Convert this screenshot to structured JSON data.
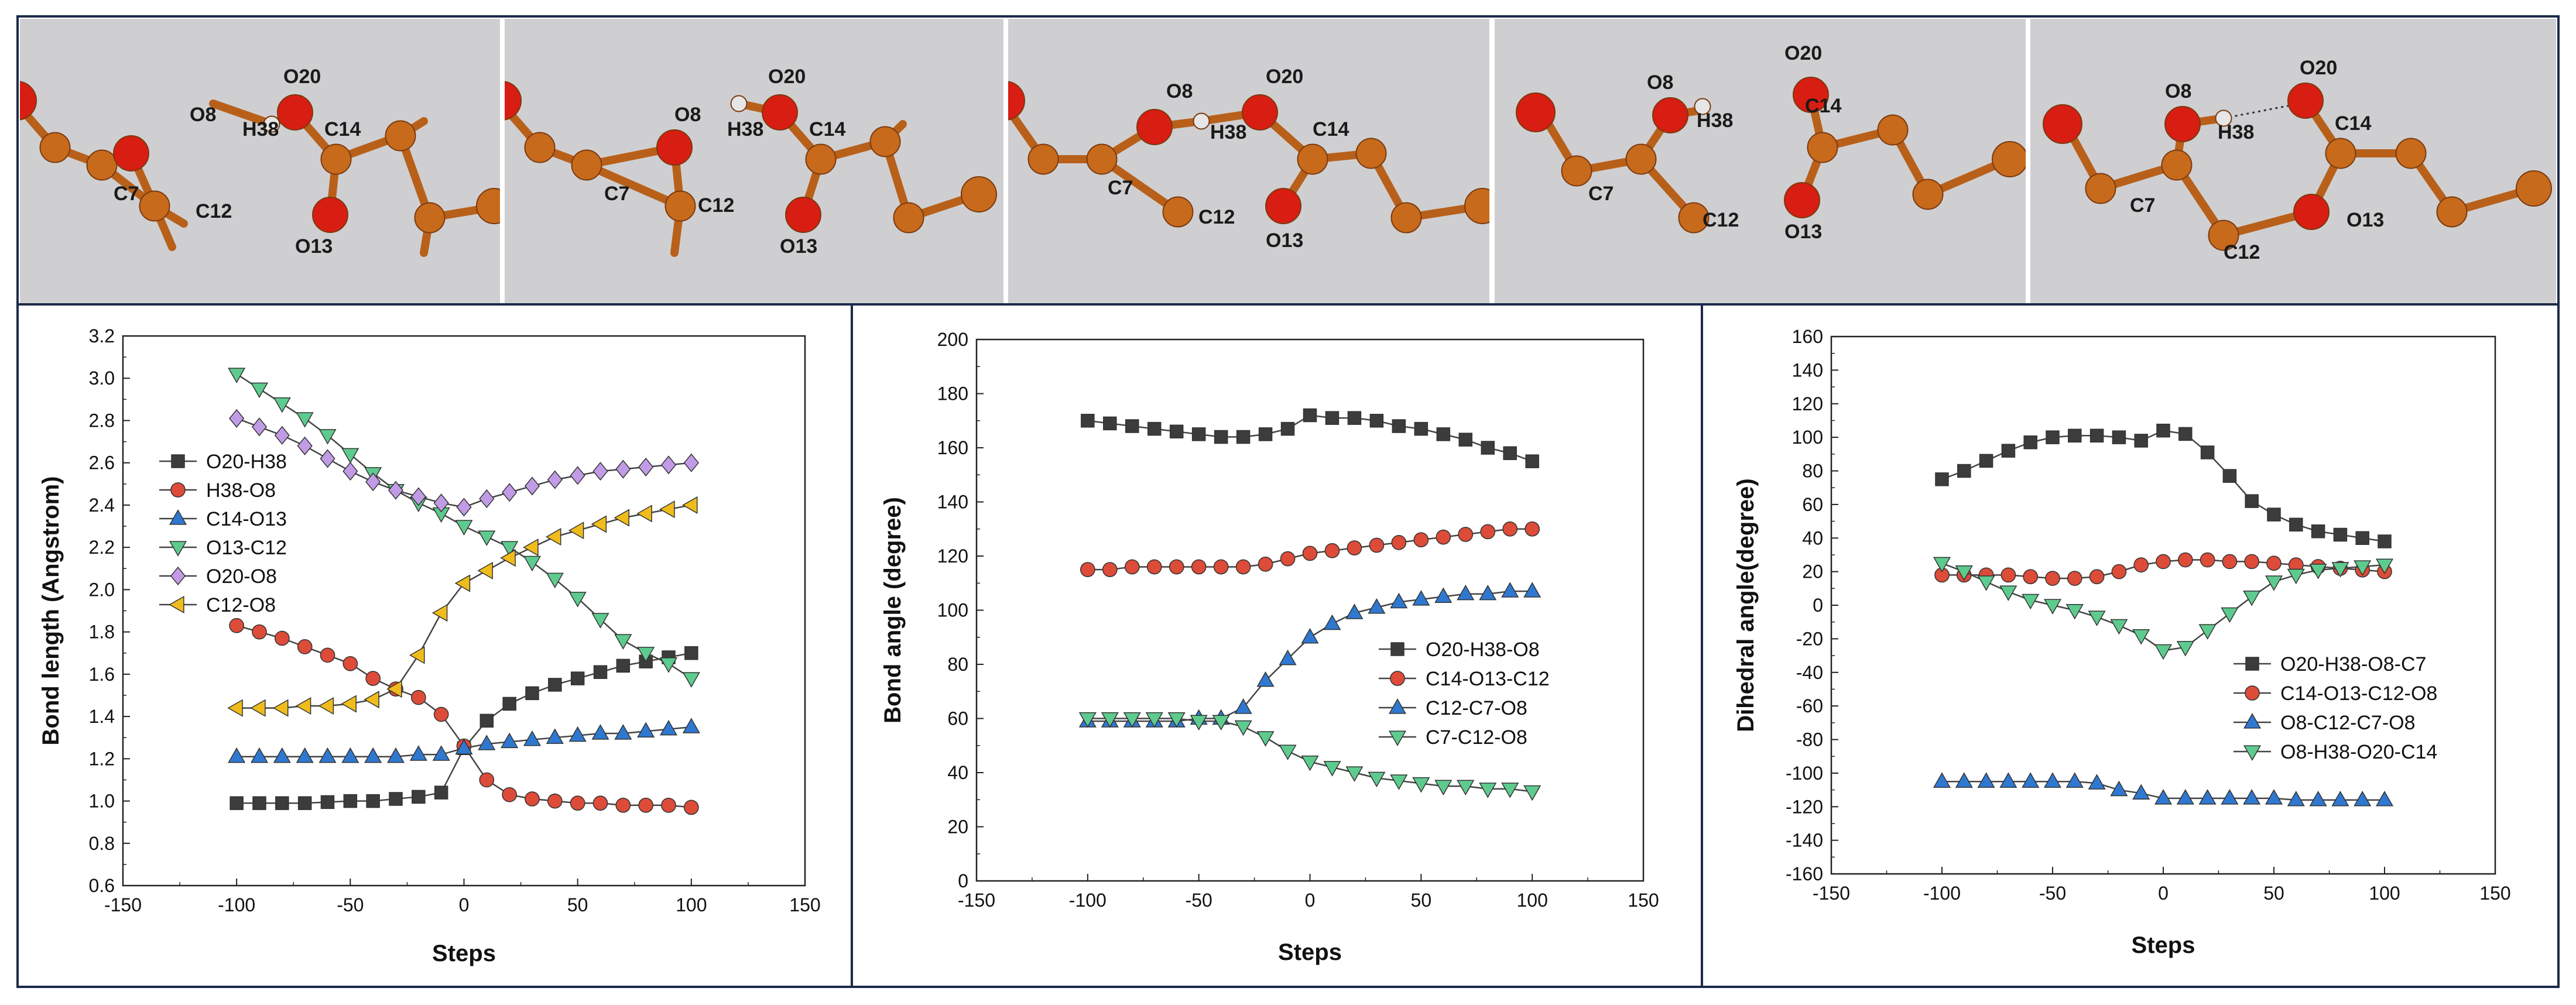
{
  "colors": {
    "carbon": "#c86a1c",
    "oxygen": "#d81d12",
    "hydrogen": "#e6e6e6",
    "panel_bg": "#cfcfd1",
    "series_black": "#3c3c3c",
    "series_red": "#dd4b39",
    "series_blue": "#2f78d0",
    "series_green": "#5ecb8e",
    "series_purple": "#c29be6",
    "series_yellow": "#efbc1c"
  },
  "snapshots": [
    {
      "labels": [
        "O8",
        "H38",
        "O20",
        "C14",
        "C7",
        "C12",
        "O13"
      ]
    },
    {
      "labels": [
        "O8",
        "H38",
        "O20",
        "C14",
        "C7",
        "C12",
        "O13"
      ]
    },
    {
      "labels": [
        "O8",
        "H38",
        "O20",
        "C14",
        "C7",
        "C12",
        "O13"
      ]
    },
    {
      "labels": [
        "O8",
        "H38",
        "O20",
        "C14",
        "C7",
        "C12",
        "O13"
      ]
    },
    {
      "labels": [
        "O8",
        "H38",
        "O20",
        "C14",
        "C7",
        "C12",
        "O13"
      ]
    }
  ],
  "chart_data": [
    {
      "type": "line",
      "title": "",
      "xlabel": "Steps",
      "ylabel": "Bond length (Angstrom)",
      "xlim": [
        -150,
        150
      ],
      "ylim": [
        0.6,
        3.2
      ],
      "xticks": [
        -150,
        -100,
        -50,
        0,
        50,
        100,
        150
      ],
      "yticks": [
        0.6,
        0.8,
        1.0,
        1.2,
        1.4,
        1.6,
        1.8,
        2.0,
        2.2,
        2.4,
        2.6,
        2.8,
        3.0,
        3.2
      ],
      "legend_position": "left",
      "x": [
        -100,
        -90,
        -80,
        -70,
        -60,
        -50,
        -40,
        -30,
        -20,
        -10,
        0,
        10,
        20,
        30,
        40,
        50,
        60,
        70,
        80,
        90,
        100
      ],
      "series": [
        {
          "name": "O20-H38",
          "marker": "square",
          "color": "#3c3c3c",
          "values": [
            0.99,
            0.99,
            0.99,
            0.99,
            0.995,
            1.0,
            1.0,
            1.01,
            1.02,
            1.04,
            1.25,
            1.38,
            1.46,
            1.51,
            1.55,
            1.58,
            1.61,
            1.64,
            1.66,
            1.68,
            1.7
          ]
        },
        {
          "name": "H38-O8",
          "marker": "circle",
          "color": "#dd4b39",
          "values": [
            1.83,
            1.8,
            1.77,
            1.73,
            1.69,
            1.65,
            1.58,
            1.53,
            1.49,
            1.41,
            1.26,
            1.1,
            1.03,
            1.01,
            1.0,
            0.99,
            0.99,
            0.98,
            0.98,
            0.98,
            0.97
          ]
        },
        {
          "name": "C14-O13",
          "marker": "triangle-up",
          "color": "#2f78d0",
          "values": [
            1.21,
            1.21,
            1.21,
            1.21,
            1.21,
            1.21,
            1.21,
            1.21,
            1.22,
            1.22,
            1.25,
            1.27,
            1.28,
            1.29,
            1.3,
            1.31,
            1.32,
            1.32,
            1.33,
            1.34,
            1.35
          ]
        },
        {
          "name": "O13-C12",
          "marker": "triangle-down",
          "color": "#5ecb8e",
          "values": [
            3.02,
            2.95,
            2.88,
            2.81,
            2.73,
            2.64,
            2.55,
            2.47,
            2.41,
            2.36,
            2.3,
            2.25,
            2.2,
            2.13,
            2.05,
            1.96,
            1.86,
            1.76,
            1.7,
            1.65,
            1.58
          ]
        },
        {
          "name": "O20-O8",
          "marker": "diamond",
          "color": "#c29be6",
          "values": [
            2.81,
            2.77,
            2.73,
            2.68,
            2.62,
            2.56,
            2.51,
            2.47,
            2.44,
            2.41,
            2.39,
            2.43,
            2.46,
            2.49,
            2.52,
            2.54,
            2.56,
            2.57,
            2.58,
            2.59,
            2.6
          ]
        },
        {
          "name": "C12-O8",
          "marker": "triangle-left",
          "color": "#efbc1c",
          "values": [
            1.44,
            1.44,
            1.44,
            1.45,
            1.45,
            1.46,
            1.48,
            1.53,
            1.69,
            1.89,
            2.03,
            2.09,
            2.15,
            2.2,
            2.25,
            2.28,
            2.31,
            2.34,
            2.36,
            2.38,
            2.4
          ]
        }
      ]
    },
    {
      "type": "line",
      "title": "",
      "xlabel": "Steps",
      "ylabel": "Bond angle (degree)",
      "xlim": [
        -150,
        150
      ],
      "ylim": [
        0,
        200
      ],
      "xticks": [
        -150,
        -100,
        -50,
        0,
        50,
        100,
        150
      ],
      "yticks": [
        0,
        20,
        40,
        60,
        80,
        100,
        120,
        140,
        160,
        180,
        200
      ],
      "legend_position": "right",
      "x": [
        -100,
        -90,
        -80,
        -70,
        -60,
        -50,
        -40,
        -30,
        -20,
        -10,
        0,
        10,
        20,
        30,
        40,
        50,
        60,
        70,
        80,
        90,
        100
      ],
      "series": [
        {
          "name": "O20-H38-O8",
          "marker": "square",
          "color": "#3c3c3c",
          "values": [
            170,
            169,
            168,
            167,
            166,
            165,
            164,
            164,
            165,
            167,
            172,
            171,
            171,
            170,
            168,
            167,
            165,
            163,
            160,
            158,
            155
          ]
        },
        {
          "name": "C14-O13-C12",
          "marker": "circle",
          "color": "#dd4b39",
          "values": [
            115,
            115,
            116,
            116,
            116,
            116,
            116,
            116,
            117,
            119,
            121,
            122,
            123,
            124,
            125,
            126,
            127,
            128,
            129,
            130,
            130
          ]
        },
        {
          "name": "C12-C7-O8",
          "marker": "triangle-up",
          "color": "#2f78d0",
          "values": [
            59,
            59,
            59,
            59,
            59,
            60,
            60,
            64,
            74,
            82,
            90,
            95,
            99,
            101,
            103,
            104,
            105,
            106,
            106,
            107,
            107
          ]
        },
        {
          "name": "C7-C12-O8",
          "marker": "triangle-down",
          "color": "#5ecb8e",
          "values": [
            60,
            60,
            60,
            60,
            60,
            59,
            59,
            57,
            53,
            48,
            44,
            42,
            40,
            38,
            37,
            36,
            35,
            35,
            34,
            34,
            33
          ]
        }
      ]
    },
    {
      "type": "line",
      "title": "",
      "xlabel": "Steps",
      "ylabel": "Dihedral angle(degree)",
      "xlim": [
        -150,
        150
      ],
      "ylim": [
        -160,
        160
      ],
      "xticks": [
        -150,
        -100,
        -50,
        0,
        50,
        100,
        150
      ],
      "yticks": [
        -160,
        -140,
        -120,
        -100,
        -80,
        -60,
        -40,
        -20,
        0,
        20,
        40,
        60,
        80,
        100,
        120,
        140,
        160
      ],
      "legend_position": "bottom-right",
      "x": [
        -100,
        -90,
        -80,
        -70,
        -60,
        -50,
        -40,
        -30,
        -20,
        -10,
        0,
        10,
        20,
        30,
        40,
        50,
        60,
        70,
        80,
        90,
        100
      ],
      "series": [
        {
          "name": "O20-H38-O8-C7",
          "marker": "square",
          "color": "#3c3c3c",
          "values": [
            75,
            80,
            86,
            92,
            97,
            100,
            101,
            101,
            100,
            98,
            104,
            102,
            91,
            77,
            62,
            54,
            48,
            44,
            42,
            40,
            38
          ]
        },
        {
          "name": "C14-O13-C12-O8",
          "marker": "circle",
          "color": "#dd4b39",
          "values": [
            18,
            18,
            18,
            18,
            17,
            16,
            16,
            17,
            20,
            24,
            26,
            27,
            27,
            26,
            26,
            25,
            24,
            23,
            22,
            21,
            20
          ]
        },
        {
          "name": "O8-C12-C7-O8",
          "marker": "triangle-up",
          "color": "#2f78d0",
          "values": [
            -105,
            -105,
            -105,
            -105,
            -105,
            -105,
            -105,
            -106,
            -110,
            -112,
            -115,
            -115,
            -115,
            -115,
            -115,
            -115,
            -116,
            -116,
            -116,
            -116,
            -116
          ]
        },
        {
          "name": "O8-H38-O20-C14",
          "marker": "triangle-down",
          "color": "#5ecb8e",
          "values": [
            25,
            20,
            14,
            8,
            3,
            0,
            -3,
            -7,
            -12,
            -18,
            -27,
            -25,
            -15,
            -5,
            5,
            14,
            18,
            21,
            22,
            23,
            24
          ]
        }
      ]
    }
  ]
}
